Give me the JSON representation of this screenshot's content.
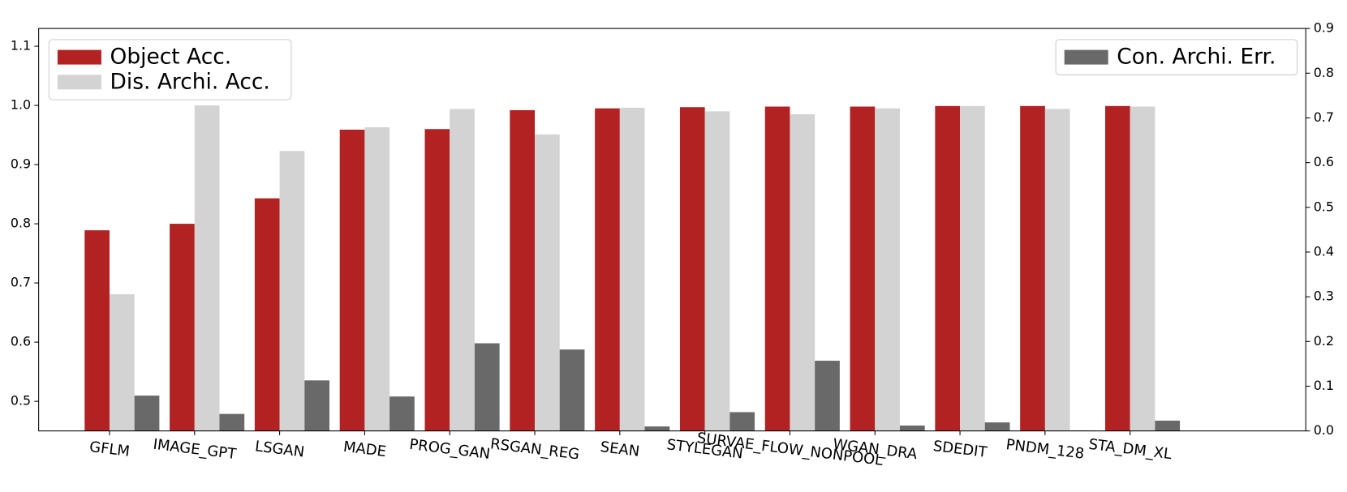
{
  "chart_data": {
    "type": "bar",
    "categories": [
      "GFLM",
      "IMAGE_GPT",
      "LSGAN",
      "MADE",
      "PROG_GAN",
      "RSGAN_REG",
      "SEAN",
      "STYLEGAN",
      "SURVAE_FLOW_NONPOOL",
      "WGAN_DRA",
      "SDEDIT",
      "PNDM_128",
      "STA_DM_XL"
    ],
    "series": [
      {
        "name": "Object Acc.",
        "color": "#b22222",
        "axis": "y",
        "values": [
          0.789,
          0.8,
          0.843,
          0.959,
          0.96,
          0.992,
          0.995,
          0.997,
          0.998,
          0.998,
          0.999,
          0.999,
          0.999
        ]
      },
      {
        "name": "Dis. Archi. Acc.",
        "color": "#d3d3d3",
        "axis": "y",
        "values": [
          0.681,
          1.0,
          0.923,
          0.963,
          0.994,
          0.951,
          0.996,
          0.99,
          0.985,
          0.995,
          0.999,
          0.994,
          0.998
        ]
      },
      {
        "name": "Con. Archi. Err.",
        "color": "#696969",
        "axis": "y2",
        "values": [
          0.079,
          0.038,
          0.113,
          0.077,
          0.196,
          0.182,
          0.01,
          0.042,
          0.157,
          0.012,
          0.019,
          0.001,
          0.023
        ]
      }
    ],
    "ylim": [
      0.45,
      1.13
    ],
    "yticks": [
      0.5,
      0.6,
      0.7,
      0.8,
      0.9,
      {
        "value": 1.0,
        "label": "1.0"
      },
      1.1
    ],
    "y2lim": [
      0,
      0.9
    ],
    "y2ticks": [
      {
        "value": 0,
        "label": "0.0"
      },
      0.1,
      0.2,
      0.3,
      0.4,
      0.5,
      0.6,
      0.7,
      0.8,
      0.9
    ],
    "legend": [
      "upper left",
      "upper right"
    ]
  }
}
